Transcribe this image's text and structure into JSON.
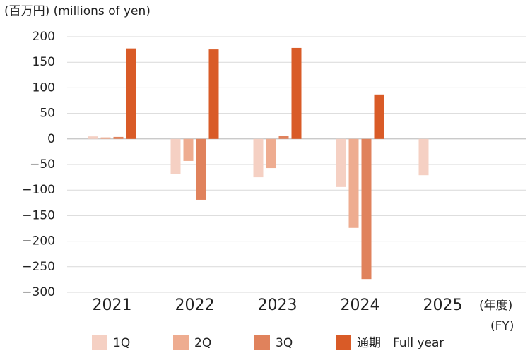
{
  "chart_data": {
    "type": "bar",
    "title": "(百万円) (millions of yen)",
    "x_unit": "(年度)",
    "x_unit_en": "(FY)",
    "categories": [
      "2021",
      "2022",
      "2023",
      "2024",
      "2025"
    ],
    "series": [
      {
        "name": "1Q",
        "color": "#f5d0c3",
        "values": [
          5,
          -69,
          -75,
          -94,
          -71
        ]
      },
      {
        "name": "2Q",
        "color": "#eeac90",
        "values": [
          3,
          -43,
          -57,
          -174,
          null
        ]
      },
      {
        "name": "3Q",
        "color": "#e0825c",
        "values": [
          4,
          -119,
          6,
          -274,
          null
        ]
      },
      {
        "name": "通期　Full year",
        "color": "#d95b27",
        "values": [
          177,
          175,
          178,
          87,
          null
        ]
      }
    ],
    "ylim": [
      -300,
      200
    ],
    "yticks": [
      {
        "value": -300,
        "label": "−300"
      },
      {
        "value": -250,
        "label": "−250"
      },
      {
        "value": -200,
        "label": "−200"
      },
      {
        "value": -150,
        "label": "−150"
      },
      {
        "value": -100,
        "label": "−100"
      },
      {
        "value": -50,
        "label": "−50"
      },
      0,
      50,
      100,
      150,
      200
    ],
    "grid": true
  }
}
